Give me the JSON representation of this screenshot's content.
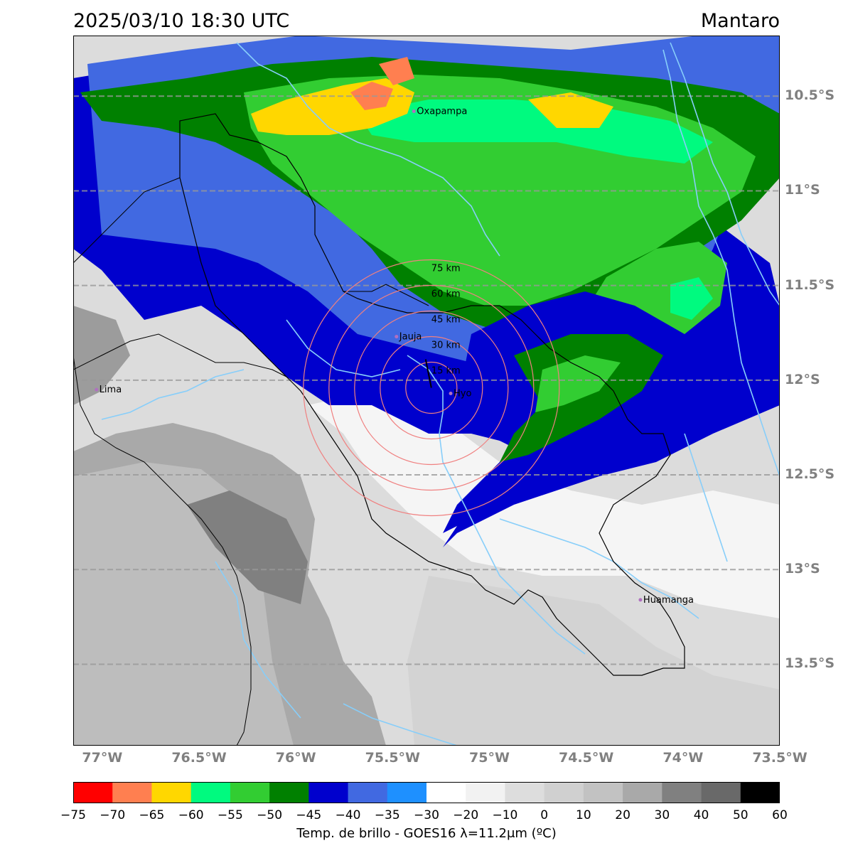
{
  "header": {
    "datetime": "2025/03/10 18:30 UTC",
    "region": "Mantaro"
  },
  "map": {
    "lon_range": [
      -77.15,
      -73.5
    ],
    "lat_range": [
      -10.18,
      -13.93
    ],
    "lat_ticks": [
      {
        "value": -10.5,
        "label": "10.5°S"
      },
      {
        "value": -11.0,
        "label": "11°S"
      },
      {
        "value": -11.5,
        "label": "11.5°S"
      },
      {
        "value": -12.0,
        "label": "12°S"
      },
      {
        "value": -12.5,
        "label": "12.5°S"
      },
      {
        "value": -13.0,
        "label": "13°S"
      },
      {
        "value": -13.5,
        "label": "13.5°S"
      }
    ],
    "lon_ticks": [
      {
        "value": -77.0,
        "label": "77°W"
      },
      {
        "value": -76.5,
        "label": "76.5°W"
      },
      {
        "value": -76.0,
        "label": "76°W"
      },
      {
        "value": -75.5,
        "label": "75.5°W"
      },
      {
        "value": -75.0,
        "label": "75°W"
      },
      {
        "value": -74.5,
        "label": "74.5°W"
      },
      {
        "value": -74.0,
        "label": "74°W"
      },
      {
        "value": -73.5,
        "label": "73.5°W"
      }
    ],
    "cities": [
      {
        "name": "Oxapampa",
        "lon": -75.39,
        "lat": -10.58
      },
      {
        "name": "Jauja",
        "lon": -75.48,
        "lat": -11.77
      },
      {
        "name": "Huancayo",
        "lon": -75.2,
        "lat": -12.07,
        "label": "Hyo"
      },
      {
        "name": "Lima",
        "lon": -77.03,
        "lat": -12.05
      },
      {
        "name": "Huamanga",
        "lon": -74.22,
        "lat": -13.16
      }
    ],
    "radar_center": {
      "lon": -75.3,
      "lat": -12.04
    },
    "range_rings": [
      {
        "radius_km": 15,
        "label": "15 km"
      },
      {
        "radius_km": 30,
        "label": "30 km"
      },
      {
        "radius_km": 45,
        "label": "45 km"
      },
      {
        "radius_km": 60,
        "label": "60 km"
      },
      {
        "radius_km": 75,
        "label": "75 km"
      }
    ]
  },
  "colorbar": {
    "label": "Temp. de brillo - GOES16 λ=11.2μm (ºC)",
    "ticks": [
      "−75",
      "−70",
      "−65",
      "−60",
      "−55",
      "−50",
      "−45",
      "−40",
      "−35",
      "−30",
      "−20",
      "−10",
      "0",
      "10",
      "20",
      "30",
      "40",
      "50",
      "60"
    ],
    "colors": [
      "#ff0000",
      "#ff7f50",
      "#ffd700",
      "#00fa7f",
      "#32cd32",
      "#008000",
      "#0000cd",
      "#4169e1",
      "#1e90ff",
      "#ffffff",
      "#f2f2f2",
      "#dddddd",
      "#d0d0d0",
      "#c2c2c2",
      "#a9a9a9",
      "#808080",
      "#696969",
      "#000000"
    ]
  },
  "colors": {
    "river": "#87cefa",
    "border": "#000000",
    "ring": "#f08080",
    "grid": "#999999"
  }
}
